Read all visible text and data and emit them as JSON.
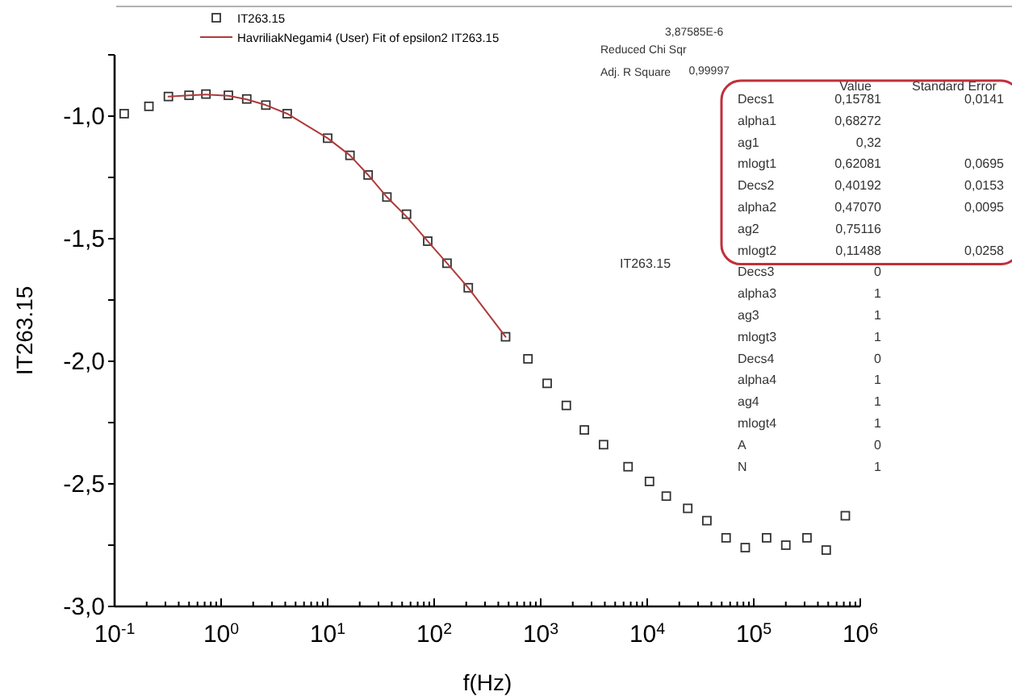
{
  "chart_data": {
    "type": "scatter",
    "xlabel": "f(Hz)",
    "ylabel": "IT263.15",
    "log": "x",
    "grid": false,
    "legend": "top",
    "xlim": [
      0.1,
      1000000
    ],
    "ylim": [
      -3.0,
      -0.75
    ],
    "xticks": [
      {
        "value": 0.1,
        "label": "10$^{-1}$"
      },
      {
        "value": 1,
        "label": "10$^{0}$"
      },
      {
        "value": 10,
        "label": "10$^{1}$"
      },
      {
        "value": 100,
        "label": "10$^{2}$"
      },
      {
        "value": 1000,
        "label": "10$^{3}$"
      },
      {
        "value": 10000,
        "label": "10$^{4}$"
      },
      {
        "value": 100000,
        "label": "10$^{5}$"
      },
      {
        "value": 1000000,
        "label": "10$^{6}$"
      },
      {
        "value": 0.2,
        "label": null
      },
      {
        "value": 0.3,
        "label": null
      },
      {
        "value": 0.4,
        "label": null
      },
      {
        "value": 0.5,
        "label": null
      },
      {
        "value": 0.6,
        "label": null
      },
      {
        "value": 0.7,
        "label": null
      },
      {
        "value": 0.8,
        "label": null
      },
      {
        "value": 0.9,
        "label": null
      },
      {
        "value": 2,
        "label": null
      },
      {
        "value": 3,
        "label": null
      },
      {
        "value": 4,
        "label": null
      },
      {
        "value": 5,
        "label": null
      },
      {
        "value": 6,
        "label": null
      },
      {
        "value": 7,
        "label": null
      },
      {
        "value": 8,
        "label": null
      },
      {
        "value": 9,
        "label": null
      },
      {
        "value": 20,
        "label": null
      },
      {
        "value": 30,
        "label": null
      },
      {
        "value": 40,
        "label": null
      },
      {
        "value": 50,
        "label": null
      },
      {
        "value": 60,
        "label": null
      },
      {
        "value": 70,
        "label": null
      },
      {
        "value": 80,
        "label": null
      },
      {
        "value": 90,
        "label": null
      },
      {
        "value": 200,
        "label": null
      },
      {
        "value": 300,
        "label": null
      },
      {
        "value": 400,
        "label": null
      },
      {
        "value": 500,
        "label": null
      },
      {
        "value": 600,
        "label": null
      },
      {
        "value": 700,
        "label": null
      },
      {
        "value": 800,
        "label": null
      },
      {
        "value": 900,
        "label": null
      },
      {
        "value": 2000,
        "label": null
      },
      {
        "value": 3000,
        "label": null
      },
      {
        "value": 4000,
        "label": null
      },
      {
        "value": 5000,
        "label": null
      },
      {
        "value": 6000,
        "label": null
      },
      {
        "value": 7000,
        "label": null
      },
      {
        "value": 8000,
        "label": null
      },
      {
        "value": 9000,
        "label": null
      },
      {
        "value": 20000,
        "label": null
      },
      {
        "value": 30000,
        "label": null
      },
      {
        "value": 40000,
        "label": null
      },
      {
        "value": 50000,
        "label": null
      },
      {
        "value": 60000,
        "label": null
      },
      {
        "value": 70000,
        "label": null
      },
      {
        "value": 80000,
        "label": null
      },
      {
        "value": 90000,
        "label": null
      },
      {
        "value": 200000,
        "label": null
      },
      {
        "value": 300000,
        "label": null
      },
      {
        "value": 400000,
        "label": null
      },
      {
        "value": 500000,
        "label": null
      },
      {
        "value": 600000,
        "label": null
      },
      {
        "value": 700000,
        "label": null
      },
      {
        "value": 800000,
        "label": null
      },
      {
        "value": 900000,
        "label": null
      }
    ],
    "yticks": [
      {
        "value": -3.0,
        "label": "-3,0"
      },
      {
        "value": -2.75,
        "label": null
      },
      {
        "value": -2.5,
        "label": "-2,5"
      },
      {
        "value": -2.25,
        "label": null
      },
      {
        "value": -2.0,
        "label": "-2,0"
      },
      {
        "value": -1.75,
        "label": null
      },
      {
        "value": -1.5,
        "label": "-1,5"
      },
      {
        "value": -1.25,
        "label": null
      },
      {
        "value": -1.0,
        "label": "-1,0"
      },
      {
        "value": -0.75,
        "label": null
      }
    ],
    "series": [
      {
        "name": "IT263.15",
        "type": "scatter",
        "marker": "square",
        "color": "#333333",
        "x": [
          0.123,
          0.21,
          0.32,
          0.5,
          0.72,
          1.17,
          1.74,
          2.63,
          4.17,
          10,
          16.2,
          24,
          36,
          55,
          87,
          132,
          209,
          468,
          759,
          1150,
          1740,
          2570,
          3890,
          6610,
          10500,
          15100,
          24000,
          36300,
          55000,
          83200,
          132000,
          200000,
          316000,
          479000,
          724000
        ],
        "values": [
          -0.99,
          -0.96,
          -0.92,
          -0.915,
          -0.91,
          -0.915,
          -0.93,
          -0.955,
          -0.99,
          -1.09,
          -1.16,
          -1.24,
          -1.33,
          -1.4,
          -1.51,
          -1.6,
          -1.7,
          -1.9,
          -1.99,
          -2.09,
          -2.18,
          -2.28,
          -2.34,
          -2.43,
          -2.49,
          -2.55,
          -2.6,
          -2.65,
          -2.72,
          -2.76,
          -2.72,
          -2.75,
          -2.72,
          -2.77,
          -2.63
        ]
      },
      {
        "name": "HavriliakNegami4 (User) Fit of epsilon2 IT263.15",
        "type": "line",
        "marker": "none",
        "line_style": "solid",
        "color": "#b03a3a",
        "x": [
          0.32,
          0.5,
          0.72,
          1.17,
          1.74,
          2.63,
          4.17,
          10,
          16.2,
          24,
          36,
          55,
          87,
          132,
          209,
          468
        ],
        "values": [
          -0.92,
          -0.915,
          -0.912,
          -0.917,
          -0.932,
          -0.955,
          -0.99,
          -1.09,
          -1.16,
          -1.24,
          -1.33,
          -1.41,
          -1.51,
          -1.6,
          -1.7,
          -1.9
        ]
      }
    ],
    "annotations": [
      "Reduced Chi Sqr",
      "3,87585E-6",
      "Adj. R Square",
      "0,99997",
      "Value",
      "Standard Error",
      "IT263.15",
      "Decs1",
      "0,15781",
      "0,0141",
      "alpha1",
      "0,68272",
      "ag1",
      "0,32",
      "mlogt1",
      "0,62081",
      "0,0695",
      "Decs2",
      "0,40192",
      "0,0153",
      "alpha2",
      "0,47070",
      "0,0095",
      "ag2",
      "0,75116",
      "mlogt2",
      "0,11488",
      "0,0258",
      "Decs3",
      "0",
      "alpha3",
      "1",
      "ag3",
      "1",
      "mlogt3",
      "1",
      "Decs4",
      "0",
      "alpha4",
      "1",
      "ag4",
      "1",
      "mlogt4",
      "1",
      "A",
      "0",
      "N",
      "1"
    ]
  }
}
